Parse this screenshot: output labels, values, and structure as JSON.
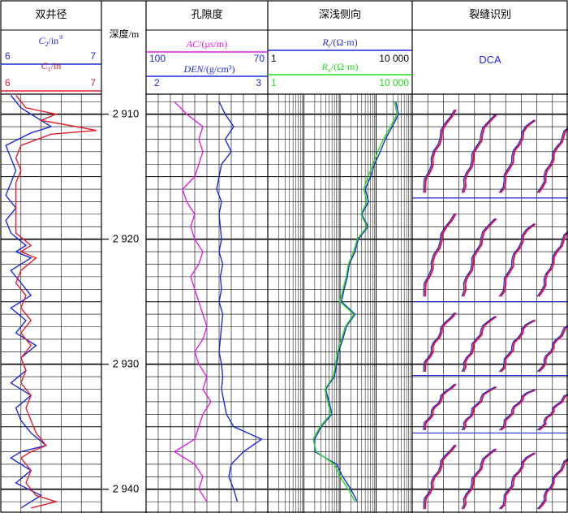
{
  "colors": {
    "frame": "#000000",
    "blue": "#1f2bd6",
    "red": "#e0202a",
    "magenta": "#e020e0",
    "green": "#22dd22",
    "fracture_fill": "#d81a4a"
  },
  "chart_data": {
    "type": "line",
    "depth": {
      "label": "深度/m",
      "range": [
        2908.4,
        2941.9
      ],
      "ticks": [
        "2 910",
        "2 920",
        "2 930",
        "2 940"
      ],
      "tick_values": [
        2910,
        2920,
        2930,
        2940
      ]
    },
    "tracks": [
      {
        "title": "双井径",
        "curves": [
          {
            "label_var": "C",
            "label_sub": "2",
            "label_unit": "/in",
            "label_sup": "①",
            "min": "6",
            "max": "7",
            "color": "blue"
          },
          {
            "label_var": "C",
            "label_sub": "1",
            "label_unit": "/in",
            "min": "6",
            "max": "7",
            "color": "red"
          }
        ],
        "series": [
          {
            "name": "C2",
            "color": "blue",
            "depth": [
              2908.5,
              2909.5,
              2910.5,
              2911.0,
              2911.5,
              2912.5,
              2913.5,
              2914.5,
              2915.5,
              2916.5,
              2917.5,
              2918.5,
              2919.5,
              2920.5,
              2921.0,
              2921.5,
              2922.5,
              2923.5,
              2924.5,
              2925.5,
              2926.5,
              2927.5,
              2928.5,
              2929.5,
              2930.5,
              2931.5,
              2932.5,
              2933.5,
              2934.5,
              2935.5,
              2936.5,
              2937.0,
              2937.5,
              2938.5,
              2939.5,
              2940.5,
              2941.5
            ],
            "value": [
              6.1,
              6.2,
              6.4,
              6.5,
              6.3,
              6.05,
              6.1,
              6.15,
              6.1,
              6.05,
              6.15,
              6.05,
              6.1,
              6.25,
              6.15,
              6.3,
              6.1,
              6.2,
              6.3,
              6.1,
              6.25,
              6.15,
              6.35,
              6.2,
              6.25,
              6.1,
              6.3,
              6.15,
              6.2,
              6.3,
              6.45,
              6.2,
              6.1,
              6.3,
              6.15,
              6.4,
              6.2
            ]
          },
          {
            "name": "C1",
            "color": "red",
            "depth": [
              2908.5,
              2909.5,
              2910.0,
              2910.5,
              2911.0,
              2911.3,
              2911.6,
              2912.5,
              2913.5,
              2914.5,
              2915.5,
              2916.5,
              2917.5,
              2918.5,
              2919.5,
              2920.5,
              2921.0,
              2921.5,
              2922.5,
              2923.5,
              2924.5,
              2925.5,
              2926.5,
              2927.5,
              2928.5,
              2929.5,
              2930.5,
              2931.5,
              2932.5,
              2933.5,
              2934.5,
              2935.5,
              2936.5,
              2937.0,
              2937.5,
              2938.5,
              2939.5,
              2940.5,
              2941.0,
              2941.5
            ],
            "value": [
              6.15,
              6.25,
              6.55,
              6.4,
              6.75,
              6.95,
              6.5,
              6.2,
              6.15,
              6.2,
              6.15,
              6.15,
              6.15,
              6.15,
              6.15,
              6.3,
              6.2,
              6.35,
              6.2,
              6.15,
              6.25,
              6.2,
              6.3,
              6.2,
              6.3,
              6.2,
              6.25,
              6.2,
              6.3,
              6.25,
              6.3,
              6.35,
              6.45,
              6.3,
              6.2,
              6.3,
              6.25,
              6.35,
              6.55,
              6.3
            ]
          }
        ]
      },
      {
        "title": "孔隙度",
        "curves": [
          {
            "label_var": "AC",
            "label_unit": "/(μs/m)",
            "min": "",
            "max": "",
            "color": "magenta"
          },
          {
            "label_var": "DEN",
            "label_unit": "/(g/cm³)",
            "min": "100",
            "max": "70",
            "color": "blue"
          },
          {
            "label_var": "",
            "label_unit": "",
            "min": "2",
            "max": "3",
            "color": "blue"
          }
        ],
        "series": [
          {
            "name": "AC",
            "color": "magenta",
            "depth": [
              2909,
              2910,
              2911,
              2912,
              2913,
              2914,
              2915,
              2916,
              2917,
              2918,
              2919,
              2920,
              2921,
              2922,
              2923,
              2924,
              2925,
              2926,
              2927,
              2928,
              2929,
              2930,
              2931,
              2932,
              2933,
              2934,
              2935,
              2936,
              2937,
              2938,
              2939,
              2940,
              2941
            ],
            "value": [
              93,
              90,
              86,
              87,
              86,
              87,
              88,
              91,
              90,
              88,
              89,
              88,
              86,
              87,
              89,
              88,
              87,
              86,
              85,
              86,
              88,
              87,
              85,
              86,
              84,
              86,
              87,
              88,
              93,
              88,
              86,
              87,
              85
            ]
          },
          {
            "name": "DEN",
            "color": "blue",
            "depth": [
              2909,
              2910,
              2911,
              2912,
              2913,
              2914,
              2915,
              2916,
              2917,
              2918,
              2919,
              2920,
              2921,
              2922,
              2923,
              2924,
              2925,
              2926,
              2927,
              2928,
              2929,
              2930,
              2931,
              2932,
              2933,
              2934,
              2935,
              2936,
              2937,
              2938,
              2939,
              2940,
              2941
            ],
            "value": [
              2.6,
              2.65,
              2.72,
              2.65,
              2.7,
              2.62,
              2.6,
              2.58,
              2.62,
              2.6,
              2.61,
              2.62,
              2.6,
              2.63,
              2.61,
              2.62,
              2.6,
              2.63,
              2.62,
              2.61,
              2.6,
              2.62,
              2.63,
              2.62,
              2.64,
              2.66,
              2.72,
              2.95,
              2.8,
              2.7,
              2.68,
              2.72,
              2.75
            ]
          }
        ]
      },
      {
        "title": "深浅侧向",
        "curves": [
          {
            "label_var": "R",
            "label_sub": "t",
            "label_unit": "/(Ω·m)",
            "min": "1",
            "max": "10 000",
            "color": "blue"
          },
          {
            "label_var": "R",
            "label_sub": "x",
            "label_unit": "/(Ω·m)",
            "min": "1",
            "max": "10 000",
            "color": "green"
          }
        ],
        "scale": "log",
        "series": [
          {
            "name": "Rt",
            "color": "blue",
            "depth": [
              2909,
              2910,
              2911,
              2912,
              2913,
              2914,
              2915,
              2916,
              2917,
              2918,
              2919,
              2920,
              2921,
              2922,
              2923,
              2924,
              2925,
              2926,
              2927,
              2928,
              2929,
              2930,
              2931,
              2932,
              2933,
              2934,
              2935,
              2936,
              2937,
              2938,
              2939,
              2940,
              2941
            ],
            "value": [
              3500,
              4200,
              2800,
              1800,
              1300,
              900,
              700,
              500,
              620,
              400,
              600,
              320,
              260,
              180,
              160,
              130,
              110,
              260,
              150,
              120,
              90,
              80,
              70,
              40,
              50,
              60,
              30,
              20,
              20,
              80,
              120,
              200,
              300
            ]
          },
          {
            "name": "Rx",
            "color": "green",
            "depth": [
              2909,
              2910,
              2911,
              2912,
              2913,
              2914,
              2915,
              2916,
              2917,
              2918,
              2919,
              2920,
              2921,
              2922,
              2923,
              2924,
              2925,
              2926,
              2927,
              2928,
              2929,
              2930,
              2931,
              2932,
              2933,
              2934,
              2935,
              2936,
              2937,
              2938,
              2939,
              2940,
              2941
            ],
            "value": [
              3200,
              3800,
              2500,
              1600,
              1100,
              820,
              600,
              450,
              560,
              380,
              560,
              300,
              240,
              170,
              150,
              120,
              100,
              240,
              140,
              110,
              85,
              75,
              65,
              38,
              46,
              55,
              28,
              18,
              22,
              70,
              100,
              170,
              260
            ]
          }
        ]
      },
      {
        "title": "裂缝识别",
        "curves": [
          {
            "label_var": "DCA",
            "label_unit": "",
            "min": "",
            "max": "",
            "color": "blue"
          }
        ],
        "separators": [
          2916.7,
          2925.0,
          2930.9,
          2935.5
        ]
      }
    ]
  }
}
